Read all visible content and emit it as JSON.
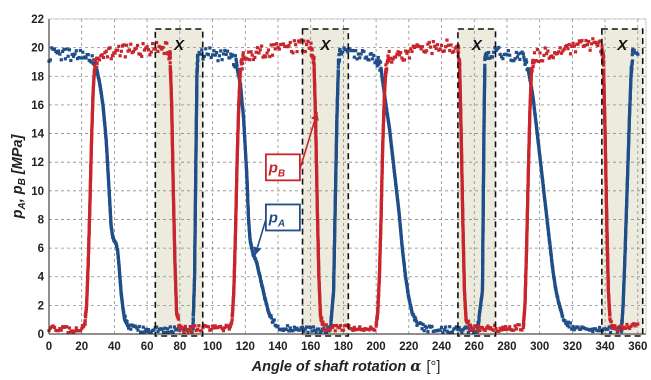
{
  "chart_data": {
    "type": "scatter",
    "xlabel_main": "Angle of shaft rotation",
    "xlabel_symbol": "α",
    "xlabel_unit": "[°]",
    "ylabel": "pA, pB  [MPa]",
    "ylabel_parts": {
      "p1": "p",
      "s1": "A",
      "sep": ", ",
      "p2": "p",
      "s2": "B",
      "unit": "[MPa]"
    },
    "xlim": [
      0,
      365
    ],
    "ylim": [
      0,
      22
    ],
    "x_ticks": [
      "0",
      "20",
      "40",
      "60",
      "80",
      "100",
      "120",
      "140",
      "160",
      "180",
      "200",
      "220",
      "240",
      "260",
      "280",
      "300",
      "320",
      "340",
      "360"
    ],
    "y_ticks": [
      "0",
      "2",
      "4",
      "6",
      "8",
      "10",
      "12",
      "14",
      "16",
      "18",
      "20",
      "22"
    ],
    "grid": true,
    "series": [
      {
        "name": "pA",
        "name_parts": {
          "p": "p",
          "sub": "A"
        },
        "color": "#1f4e89",
        "points": [
          [
            0,
            19.5
          ],
          [
            5,
            19.6
          ],
          [
            10,
            19.5
          ],
          [
            15,
            19.5
          ],
          [
            20,
            19.5
          ],
          [
            24,
            19.3
          ],
          [
            27,
            19.0
          ],
          [
            29,
            18.6
          ],
          [
            31,
            17.5
          ],
          [
            33,
            16.0
          ],
          [
            35,
            13.5
          ],
          [
            36,
            11.5
          ],
          [
            37,
            9.5
          ],
          [
            38,
            7.5
          ],
          [
            39,
            6.8
          ],
          [
            40,
            6.5
          ],
          [
            41,
            6.3
          ],
          [
            42,
            5.8
          ],
          [
            43,
            4.5
          ],
          [
            44,
            3.0
          ],
          [
            45,
            2.0
          ],
          [
            46,
            1.2
          ],
          [
            48,
            0.6
          ],
          [
            52,
            0.4
          ],
          [
            60,
            0.3
          ],
          [
            70,
            0.3
          ],
          [
            80,
            0.3
          ],
          [
            88,
            0.3
          ],
          [
            89,
            4.0
          ],
          [
            89.5,
            9.0
          ],
          [
            90,
            14.0
          ],
          [
            90.5,
            18.5
          ],
          [
            91,
            19.5
          ],
          [
            95,
            19.6
          ],
          [
            100,
            19.5
          ],
          [
            105,
            19.5
          ],
          [
            110,
            19.4
          ],
          [
            114,
            19.0
          ],
          [
            117,
            17.5
          ],
          [
            119,
            15.0
          ],
          [
            121,
            11.0
          ],
          [
            122,
            8.0
          ],
          [
            123,
            6.5
          ],
          [
            124,
            6.0
          ],
          [
            125,
            5.5
          ],
          [
            127,
            5.0
          ],
          [
            128,
            4.5
          ],
          [
            130,
            3.5
          ],
          [
            132,
            2.5
          ],
          [
            134,
            1.6
          ],
          [
            136,
            1.0
          ],
          [
            140,
            0.5
          ],
          [
            145,
            0.4
          ],
          [
            155,
            0.3
          ],
          [
            165,
            0.3
          ],
          [
            172,
            0.3
          ],
          [
            174,
            3.0
          ],
          [
            175,
            9.0
          ],
          [
            176,
            15.0
          ],
          [
            177,
            19.0
          ],
          [
            178,
            19.6
          ],
          [
            185,
            19.7
          ],
          [
            190,
            19.6
          ],
          [
            195,
            19.5
          ],
          [
            200,
            19.3
          ],
          [
            203,
            18.5
          ],
          [
            206,
            16.0
          ],
          [
            208,
            14.5
          ],
          [
            210,
            12.5
          ],
          [
            212,
            10.5
          ],
          [
            214,
            8.5
          ],
          [
            216,
            6.0
          ],
          [
            218,
            4.0
          ],
          [
            220,
            2.5
          ],
          [
            222,
            1.5
          ],
          [
            225,
            0.8
          ],
          [
            230,
            0.4
          ],
          [
            240,
            0.3
          ],
          [
            250,
            0.3
          ],
          [
            262,
            0.3
          ],
          [
            265,
            3.0
          ],
          [
            265.5,
            9.0
          ],
          [
            266,
            15.0
          ],
          [
            266.5,
            19.0
          ],
          [
            268,
            19.5
          ],
          [
            275,
            19.6
          ],
          [
            280,
            19.5
          ],
          [
            285,
            19.5
          ],
          [
            290,
            19.3
          ],
          [
            293,
            18.5
          ],
          [
            296,
            16.5
          ],
          [
            298,
            14.5
          ],
          [
            300,
            12.5
          ],
          [
            302,
            10.5
          ],
          [
            304,
            8.5
          ],
          [
            306,
            6.5
          ],
          [
            308,
            4.5
          ],
          [
            310,
            3.0
          ],
          [
            312,
            2.0
          ],
          [
            314,
            1.2
          ],
          [
            318,
            0.6
          ],
          [
            325,
            0.4
          ],
          [
            335,
            0.3
          ],
          [
            345,
            0.3
          ],
          [
            350,
            0.3
          ],
          [
            351,
            2.0
          ],
          [
            352,
            5.0
          ],
          [
            353,
            8.5
          ],
          [
            354,
            12.0
          ],
          [
            355,
            15.5
          ],
          [
            356,
            18.5
          ],
          [
            357,
            19.5
          ],
          [
            360,
            19.6
          ]
        ]
      },
      {
        "name": "pB",
        "name_parts": {
          "p": "p",
          "sub": "B"
        },
        "color": "#c8252d",
        "points": [
          [
            0,
            0.4
          ],
          [
            5,
            0.3
          ],
          [
            10,
            0.3
          ],
          [
            15,
            0.3
          ],
          [
            20,
            0.4
          ],
          [
            22,
            0.8
          ],
          [
            23,
            2.0
          ],
          [
            24,
            5.0
          ],
          [
            25,
            9.0
          ],
          [
            26,
            13.5
          ],
          [
            27,
            17.0
          ],
          [
            28,
            18.8
          ],
          [
            30,
            19.4
          ],
          [
            35,
            19.5
          ],
          [
            45,
            19.8
          ],
          [
            55,
            19.8
          ],
          [
            65,
            20.0
          ],
          [
            72,
            20.0
          ],
          [
            74,
            19.5
          ],
          [
            75,
            16.0
          ],
          [
            76,
            10.0
          ],
          [
            77,
            5.0
          ],
          [
            78,
            1.5
          ],
          [
            80,
            0.4
          ],
          [
            85,
            0.3
          ],
          [
            90,
            0.4
          ],
          [
            100,
            0.4
          ],
          [
            110,
            0.4
          ],
          [
            112,
            1.0
          ],
          [
            113,
            3.0
          ],
          [
            114,
            7.0
          ],
          [
            115,
            12.0
          ],
          [
            116,
            16.0
          ],
          [
            117,
            18.5
          ],
          [
            119,
            19.3
          ],
          [
            125,
            19.6
          ],
          [
            135,
            19.8
          ],
          [
            145,
            20.0
          ],
          [
            155,
            20.1
          ],
          [
            160,
            20.0
          ],
          [
            162,
            19.0
          ],
          [
            163,
            15.0
          ],
          [
            164,
            9.0
          ],
          [
            165,
            4.0
          ],
          [
            166,
            1.2
          ],
          [
            168,
            0.5
          ],
          [
            175,
            0.4
          ],
          [
            185,
            0.4
          ],
          [
            195,
            0.4
          ],
          [
            200,
            0.5
          ],
          [
            201,
            1.5
          ],
          [
            202,
            4.0
          ],
          [
            203,
            8.0
          ],
          [
            204,
            13.0
          ],
          [
            205,
            16.5
          ],
          [
            206,
            18.6
          ],
          [
            208,
            19.3
          ],
          [
            215,
            19.5
          ],
          [
            225,
            19.8
          ],
          [
            235,
            20.0
          ],
          [
            245,
            20.1
          ],
          [
            250,
            20.0
          ],
          [
            251,
            19.0
          ],
          [
            252,
            14.0
          ],
          [
            253,
            8.0
          ],
          [
            254,
            3.0
          ],
          [
            255,
            1.0
          ],
          [
            258,
            0.4
          ],
          [
            265,
            0.4
          ],
          [
            275,
            0.4
          ],
          [
            285,
            0.4
          ],
          [
            290,
            0.5
          ],
          [
            291,
            2.0
          ],
          [
            292,
            6.0
          ],
          [
            293,
            11.0
          ],
          [
            294,
            15.5
          ],
          [
            295,
            18.5
          ],
          [
            297,
            19.4
          ],
          [
            305,
            19.6
          ],
          [
            315,
            19.8
          ],
          [
            325,
            20.1
          ],
          [
            335,
            20.2
          ],
          [
            338,
            20.0
          ],
          [
            339,
            19.0
          ],
          [
            340,
            14.0
          ],
          [
            341,
            8.0
          ],
          [
            342,
            3.0
          ],
          [
            343,
            1.0
          ],
          [
            346,
            0.4
          ],
          [
            355,
            0.5
          ],
          [
            360,
            0.6
          ]
        ]
      }
    ],
    "highlight_regions": [
      {
        "label": "X",
        "x": [
          65,
          94
        ]
      },
      {
        "label": "X",
        "x": [
          155,
          183
        ]
      },
      {
        "label": "X",
        "x": [
          250,
          273
        ]
      },
      {
        "label": "X",
        "x": [
          338,
          363
        ]
      }
    ],
    "annotations": [
      {
        "target": "pB",
        "text_parts": {
          "p": "p",
          "sub": "B"
        },
        "anchor": [
          143,
          11.5
        ],
        "arrow_to": [
          164,
          15.5
        ]
      },
      {
        "target": "pA",
        "text_parts": {
          "p": "p",
          "sub": "A"
        },
        "anchor": [
          143,
          8.0
        ],
        "arrow_to": [
          126,
          5.5
        ]
      }
    ],
    "colors": {
      "pA": "#1f4e89",
      "pB": "#c8252d",
      "highlight": "#e9e8d8"
    }
  }
}
